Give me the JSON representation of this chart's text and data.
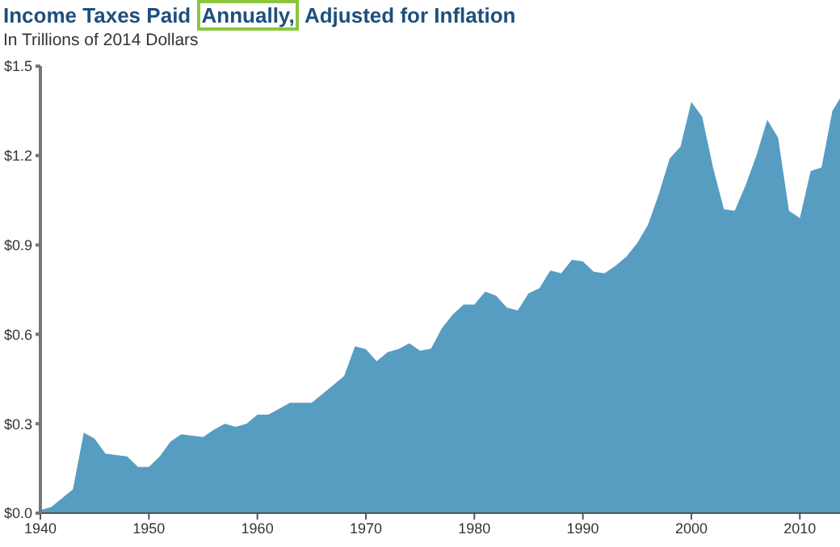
{
  "chart_data": {
    "type": "area",
    "title": "Income Taxes Paid Annually, Adjusted for Inflation",
    "subtitle": "In Trillions of 2014 Dollars",
    "x": [
      1940,
      1941,
      1942,
      1943,
      1944,
      1945,
      1946,
      1947,
      1948,
      1949,
      1950,
      1951,
      1952,
      1953,
      1954,
      1955,
      1956,
      1957,
      1958,
      1959,
      1960,
      1961,
      1962,
      1963,
      1964,
      1965,
      1966,
      1967,
      1968,
      1969,
      1970,
      1971,
      1972,
      1973,
      1974,
      1975,
      1976,
      1977,
      1978,
      1979,
      1980,
      1981,
      1982,
      1983,
      1984,
      1985,
      1986,
      1987,
      1988,
      1989,
      1990,
      1991,
      1992,
      1993,
      1994,
      1995,
      1996,
      1997,
      1998,
      1999,
      2000,
      2001,
      2002,
      2003,
      2004,
      2005,
      2006,
      2007,
      2008,
      2009,
      2010,
      2011,
      2012,
      2013,
      2014
    ],
    "series": [
      {
        "color": "#579dc2",
        "values": [
          0.01,
          0.02,
          0.05,
          0.08,
          0.27,
          0.25,
          0.2,
          0.195,
          0.19,
          0.155,
          0.155,
          0.19,
          0.24,
          0.265,
          0.26,
          0.255,
          0.28,
          0.3,
          0.29,
          0.3,
          0.33,
          0.33,
          0.35,
          0.37,
          0.37,
          0.37,
          0.4,
          0.43,
          0.46,
          0.56,
          0.55,
          0.51,
          0.54,
          0.55,
          0.57,
          0.545,
          0.552,
          0.62,
          0.666,
          0.7,
          0.7,
          0.743,
          0.73,
          0.69,
          0.68,
          0.738,
          0.755,
          0.814,
          0.805,
          0.85,
          0.845,
          0.81,
          0.805,
          0.83,
          0.86,
          0.906,
          0.967,
          1.07,
          1.19,
          1.23,
          1.38,
          1.33,
          1.16,
          1.02,
          1.015,
          1.1,
          1.2,
          1.32,
          1.26,
          1.015,
          0.99,
          1.148,
          1.16,
          1.35,
          1.41
        ]
      }
    ],
    "xlim": [
      1940,
      2014
    ],
    "xticks": [
      1940,
      1950,
      1960,
      1970,
      1980,
      1990,
      2000,
      2010
    ],
    "ylim": [
      0,
      1.5
    ],
    "yticks": [
      {
        "value": 0,
        "label": "$0.0"
      },
      {
        "value": 0.3,
        "label": "$0.3"
      },
      {
        "value": 0.6,
        "label": "$0.6"
      },
      {
        "value": 0.9,
        "label": "$0.9"
      },
      {
        "value": 1.2,
        "label": "$1.2"
      },
      {
        "value": 1.5,
        "label": "$1.5"
      }
    ],
    "grid": false,
    "legend": false
  }
}
